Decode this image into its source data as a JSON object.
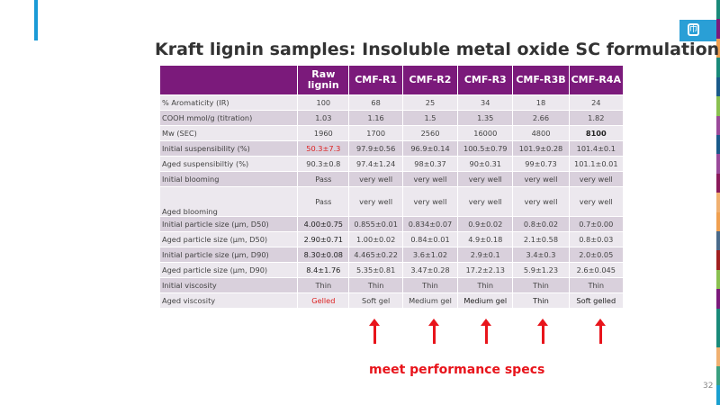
{
  "title": "Kraft lignin samples:  Insoluble metal oxide SC formulation",
  "headers": [
    "",
    "Raw lignin",
    "CMF-R1",
    "CMF-R2",
    "CMF-R3",
    "CMF-R3B",
    "CMF-R4A"
  ],
  "rows": [
    {
      "label": "% Aromaticity (IR)",
      "values": [
        "100",
        "68",
        "25",
        "34",
        "18",
        "24"
      ]
    },
    {
      "label": "COOH  mmol/g  (titration)",
      "values": [
        "1.03",
        "1.16",
        "1.5",
        "1.35",
        "2.66",
        "1.82"
      ]
    },
    {
      "label": "Mw (SEC)",
      "values": [
        "1960",
        "1700",
        "2560",
        "16000",
        "4800",
        "8100"
      ]
    },
    {
      "label": "Initial suspensibility (%)",
      "values": [
        "50.3±7.3",
        "97.9±0.56",
        "96.9±0.14",
        "100.5±0.79",
        "101.9±0.28",
        "101.4±0.1"
      ]
    },
    {
      "label": "Aged suspensibiltiy (%)",
      "values": [
        "90.3±0.8",
        "97.4±1.24",
        "98±0.37",
        "90±0.31",
        "99±0.73",
        "101.1±0.01"
      ]
    },
    {
      "label": "Initial blooming",
      "values": [
        "Pass",
        "very well",
        "very well",
        "very well",
        "very well",
        "very well"
      ]
    },
    {
      "label": "Aged blooming",
      "values": [
        "Pass",
        "very well",
        "very well",
        "very well",
        "very well",
        "very well"
      ]
    },
    {
      "label": "Initial particle size (μm, D50)",
      "values": [
        "4.00±0.75",
        "0.855±0.01",
        "0.834±0.07",
        "0.9±0.02",
        "0.8±0.02",
        "0.7±0.00"
      ]
    },
    {
      "label": "Aged particle size (μm, D50)",
      "values": [
        "2.90±0.71",
        "1.00±0.02",
        "0.84±0.01",
        "4.9±0.18",
        "2.1±0.58",
        "0.8±0.03"
      ]
    },
    {
      "label": "Initial particle size (μm, D90)",
      "values": [
        "8.30±0.08",
        "4.465±0.22",
        "3.6±1.02",
        "2.9±0.1",
        "3.4±0.3",
        "2.0±0.05"
      ]
    },
    {
      "label": "Aged particle size (μm, D90)",
      "values": [
        "8.4±1.76",
        "5.35±0.81",
        "3.47±0.28",
        "17.2±2.13",
        "5.9±1.23",
        "2.6±0.045"
      ]
    },
    {
      "label": "Initial viscosity",
      "values": [
        "Thin",
        "Thin",
        "Thin",
        "Thin",
        "Thin",
        "Thin"
      ]
    },
    {
      "label": "Aged viscosity",
      "values": [
        "Gelled",
        "Soft gel",
        "Medium gel",
        "Medium gel",
        "Thin",
        "Soft gelled"
      ]
    }
  ],
  "annotation": "meet performance specs",
  "page_number": "32",
  "colors": {
    "header": "#7b1a7b",
    "accent": "#1a9ad6",
    "highlight": "#e8141b"
  }
}
